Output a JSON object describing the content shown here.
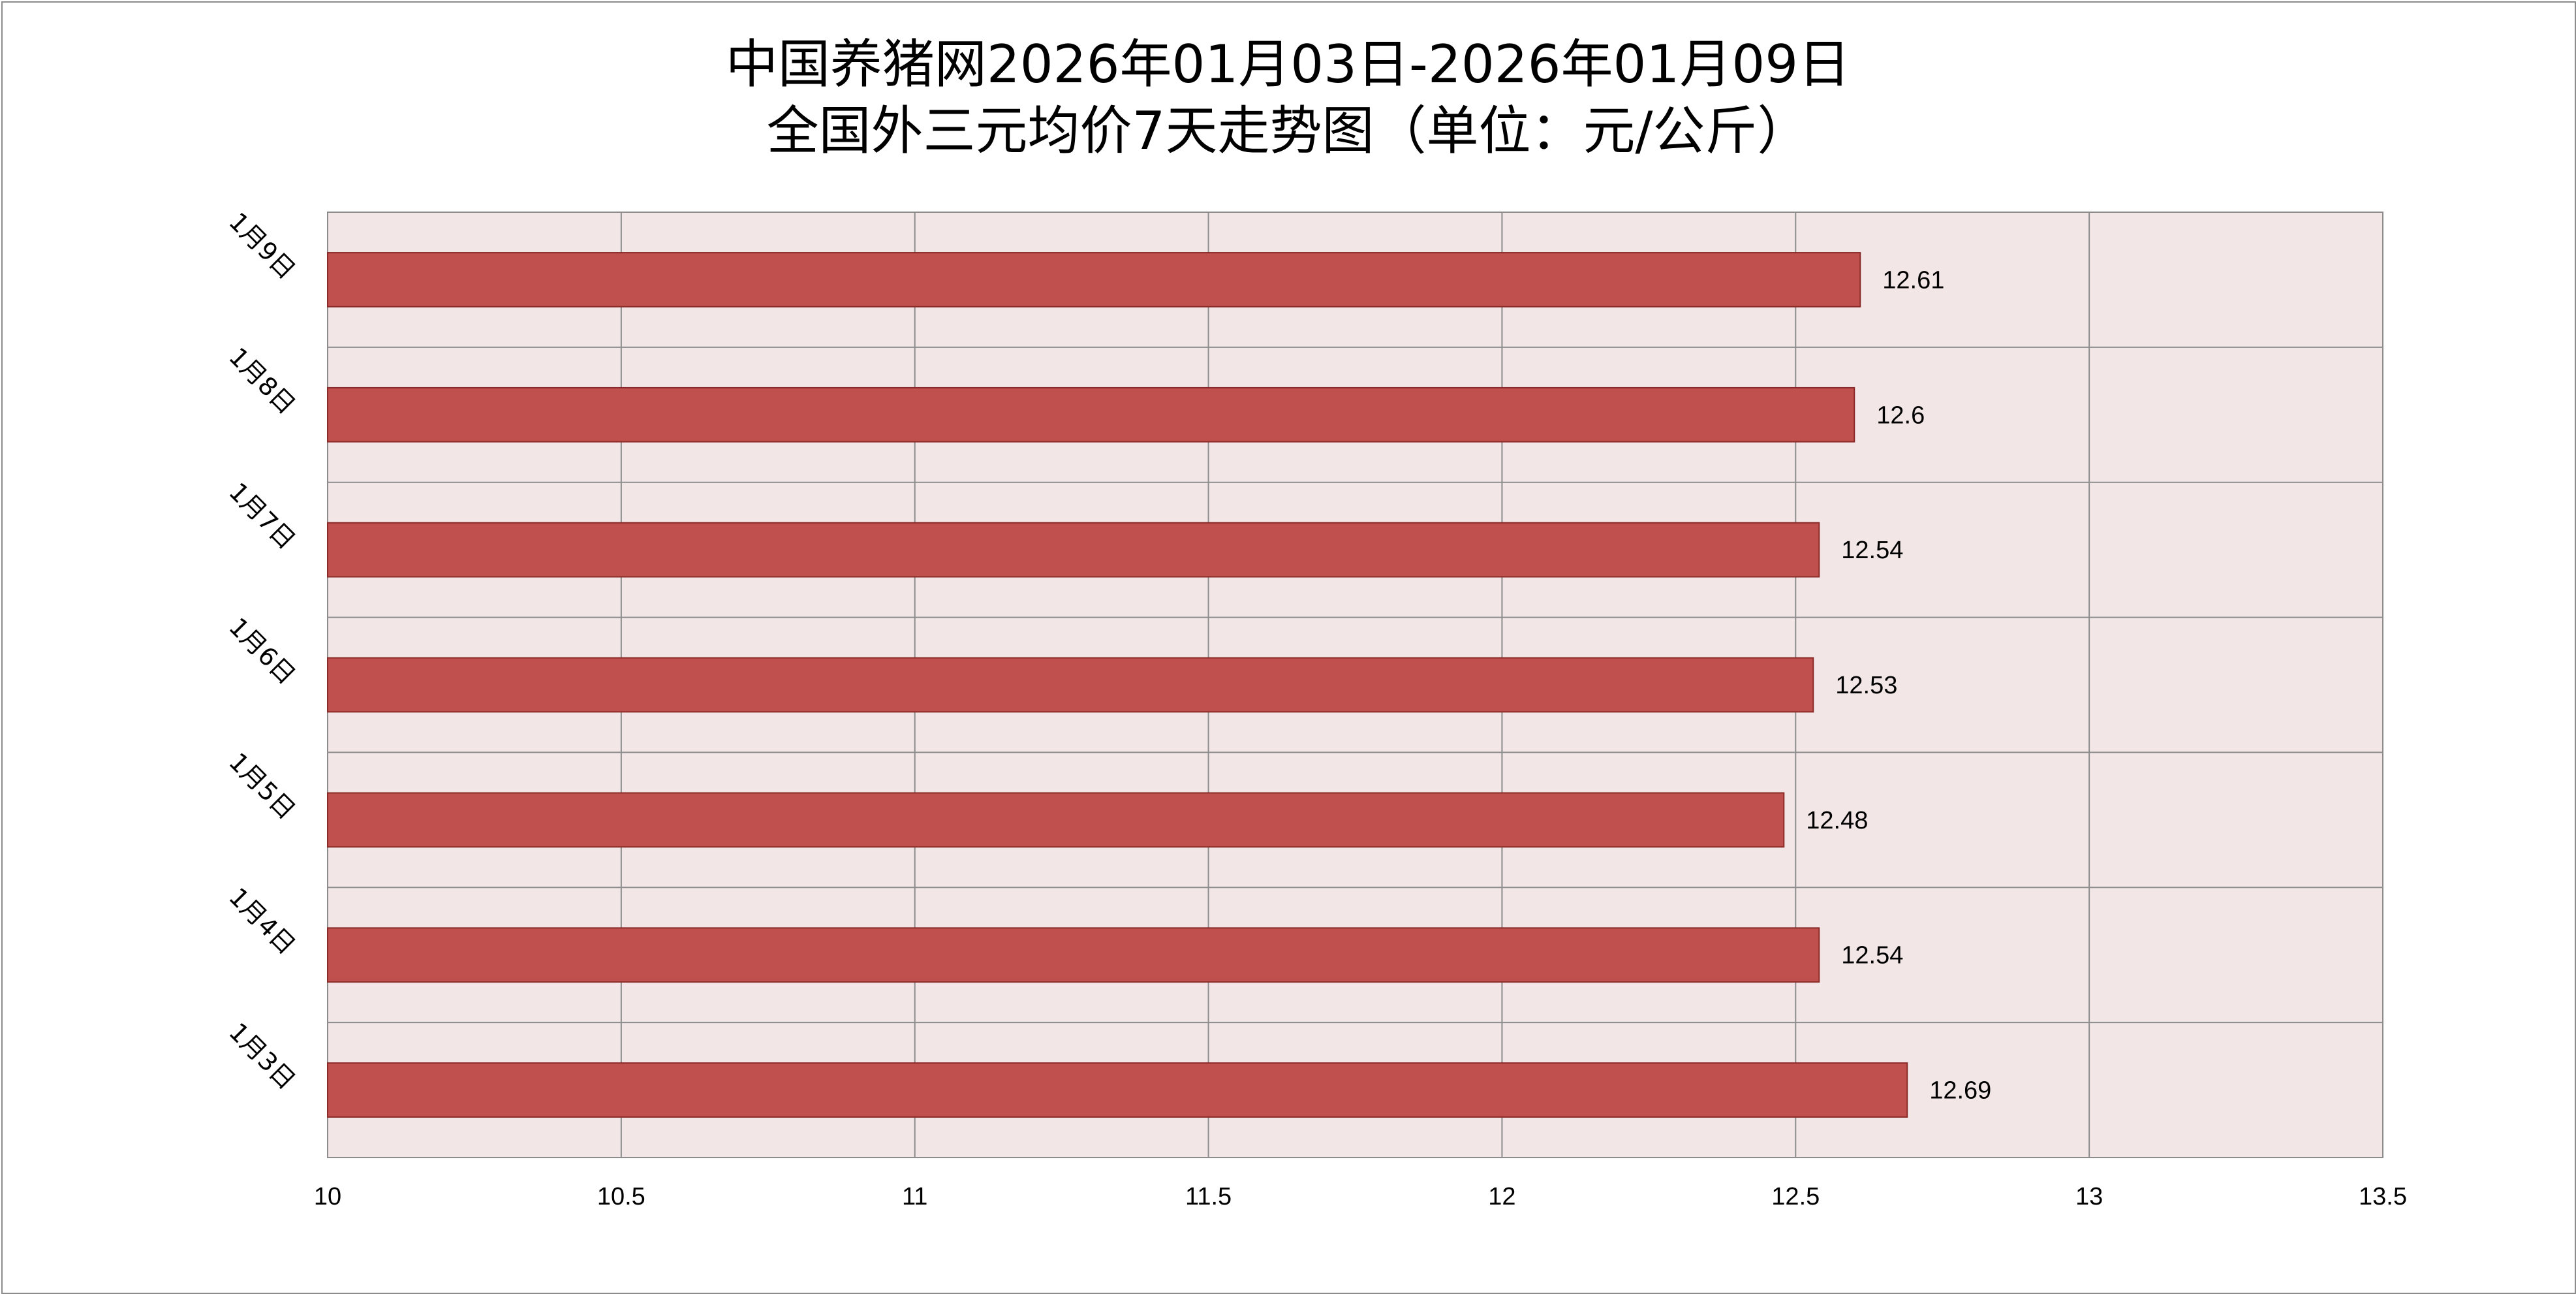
{
  "chart_data": {
    "type": "bar",
    "orientation": "horizontal",
    "title_lines": [
      "中国养猪网2026年01月03日-2026年01月09日",
      "全国外三元均价7天走势图（单位：元/公斤）"
    ],
    "categories": [
      "1月9日",
      "1月8日",
      "1月7日",
      "1月6日",
      "1月5日",
      "1月4日",
      "1月3日"
    ],
    "values": [
      12.61,
      12.6,
      12.54,
      12.53,
      12.48,
      12.54,
      12.69
    ],
    "data_labels": [
      "12.61",
      "12.6",
      "12.54",
      "12.53",
      "12.48",
      "12.54",
      "12.69"
    ],
    "xlim": [
      10,
      13.5
    ],
    "x_ticks": [
      10,
      10.5,
      11,
      11.5,
      12,
      12.5,
      13,
      13.5
    ],
    "x_tick_labels": [
      "10",
      "10.5",
      "11",
      "11.5",
      "12",
      "12.5",
      "13",
      "13.5"
    ],
    "grid": true,
    "legend": false,
    "colors": {
      "bar_fill": "#c0504d",
      "bar_stroke": "#8b2b28",
      "plot_background": "#f2e6e6",
      "grid": "#8c8c8c",
      "frame": "#8c8c8c"
    }
  }
}
